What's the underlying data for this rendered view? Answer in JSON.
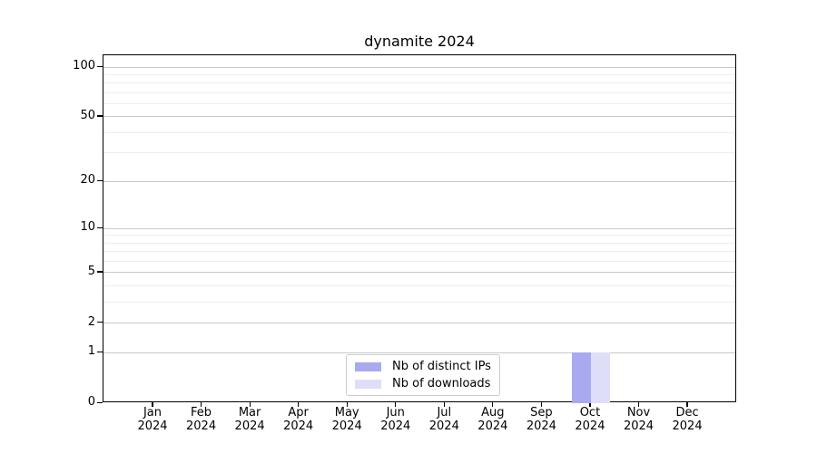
{
  "chart_data": {
    "type": "bar",
    "title": "dynamite 2024",
    "categories": [
      "Jan 2024",
      "Feb 2024",
      "Mar 2024",
      "Apr 2024",
      "May 2024",
      "Jun 2024",
      "Jul 2024",
      "Aug 2024",
      "Sep 2024",
      "Oct 2024",
      "Nov 2024",
      "Dec 2024"
    ],
    "series": [
      {
        "name": "Nb of distinct IPs",
        "color": "#a9a9f0",
        "values": [
          0,
          0,
          0,
          0,
          0,
          0,
          0,
          0,
          0,
          1,
          0,
          0
        ]
      },
      {
        "name": "Nb of downloads",
        "color": "#dedef8",
        "values": [
          0,
          0,
          0,
          0,
          0,
          0,
          0,
          0,
          0,
          1,
          0,
          0
        ]
      }
    ],
    "xlabel": "",
    "ylabel": "",
    "yscale": "log1p",
    "ylim": [
      0,
      118
    ],
    "y_major_ticks": [
      0,
      1,
      2,
      5,
      10,
      20,
      50,
      100
    ],
    "y_minor_gridlines": [
      3,
      4,
      6,
      7,
      8,
      9,
      30,
      40,
      60,
      70,
      80,
      90
    ],
    "grid": "horizontal",
    "legend_position": "lower center"
  },
  "colors": {
    "background": "#ffffff",
    "axis": "#000000",
    "major_grid": "#c9c9c9",
    "minor_grid": "#ededed",
    "legend_border": "#cccccc",
    "text": "#000000"
  }
}
